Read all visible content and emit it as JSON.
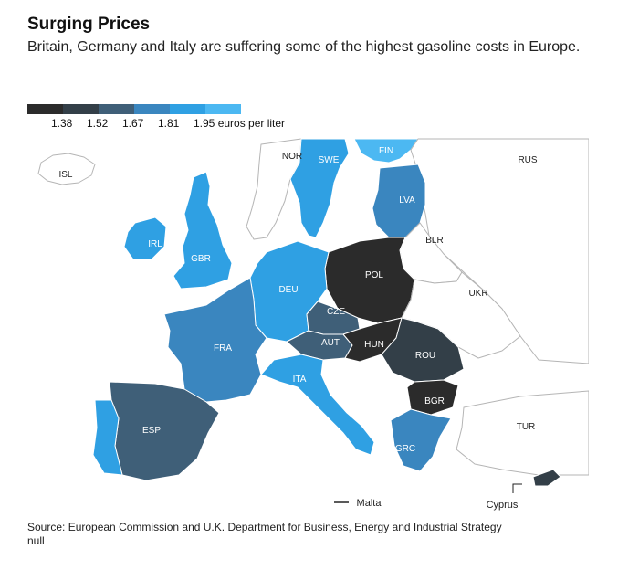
{
  "header": {
    "title": "Surging Prices",
    "subtitle": "Britain, Germany and Italy are suffering some of the highest gasoline costs in Europe."
  },
  "legend": {
    "colors": [
      "#2b2b2b",
      "#333f48",
      "#3f5f78",
      "#3a86bf",
      "#2fa0e3",
      "#4cb8f2"
    ],
    "ticks": [
      "1.38",
      "1.52",
      "1.67",
      "1.81",
      "1.95 euros per liter"
    ]
  },
  "colors": {
    "no_data": "#ffffff",
    "border": "#b5b5b5",
    "country_edge": "#ffffff"
  },
  "countries": [
    {
      "code": "ISL",
      "color_class": "none"
    },
    {
      "code": "NOR",
      "color_class": "none"
    },
    {
      "code": "SWE",
      "color_class": 4
    },
    {
      "code": "FIN",
      "color_class": 5
    },
    {
      "code": "RUS",
      "color_class": "none"
    },
    {
      "code": "LVA",
      "color_class": 3
    },
    {
      "code": "BLR",
      "color_class": "none"
    },
    {
      "code": "IRL",
      "color_class": 4
    },
    {
      "code": "GBR",
      "color_class": 4
    },
    {
      "code": "POL",
      "color_class": 0
    },
    {
      "code": "UKR",
      "color_class": "none"
    },
    {
      "code": "DEU",
      "color_class": 4
    },
    {
      "code": "CZE",
      "color_class": 2
    },
    {
      "code": "FRA",
      "color_class": 3
    },
    {
      "code": "AUT",
      "color_class": 2
    },
    {
      "code": "HUN",
      "color_class": 0
    },
    {
      "code": "ROU",
      "color_class": 1
    },
    {
      "code": "ITA",
      "color_class": 4
    },
    {
      "code": "BGR",
      "color_class": 0
    },
    {
      "code": "ESP",
      "color_class": 2
    },
    {
      "code": "TUR",
      "color_class": "none"
    },
    {
      "code": "GRC",
      "color_class": 3
    },
    {
      "code": "Malta",
      "color_class": "none"
    },
    {
      "code": "Cyprus",
      "color_class": 1
    }
  ],
  "source": "Source: European Commission and U.K. Department for Business, Energy and Industrial Strategy",
  "note": "null"
}
